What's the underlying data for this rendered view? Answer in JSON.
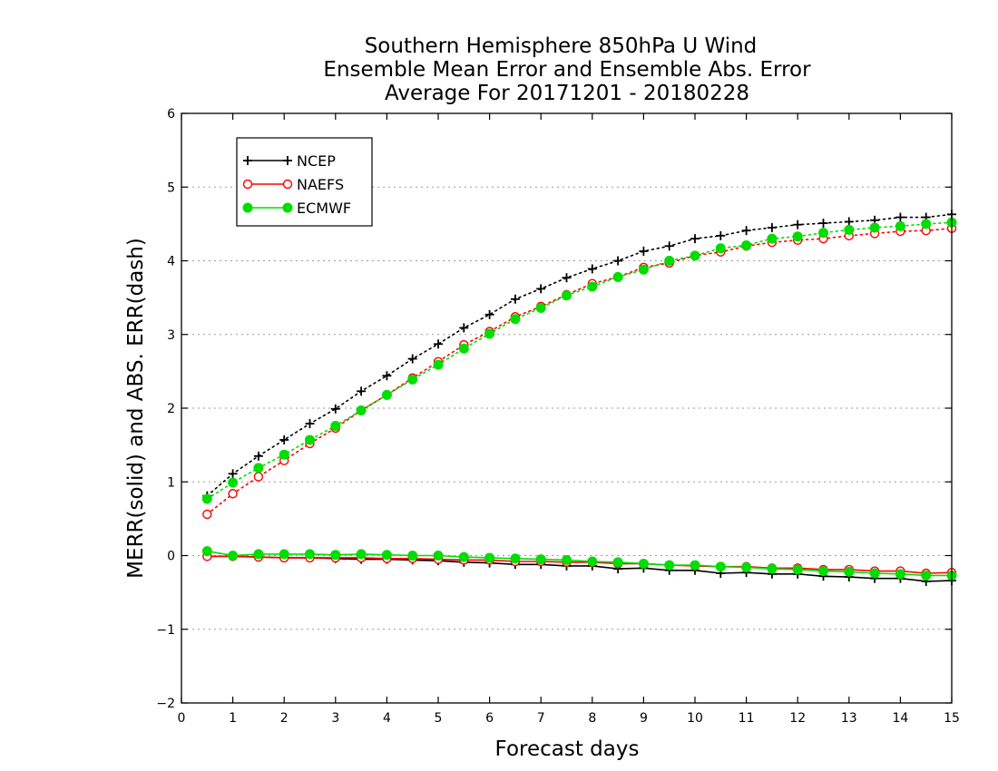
{
  "chart_data": {
    "type": "line",
    "title_lines": [
      "Southern Hemisphere 850hPa U Wind",
      "Ensemble Mean Error and Ensemble Abs. Error",
      "Average For 20171201 - 20180228"
    ],
    "xlabel": "Forecast days",
    "ylabel": "MERR(solid) and ABS. ERR(dash)",
    "xlim": [
      0,
      15
    ],
    "ylim": [
      -2,
      6
    ],
    "xticks": [
      "0",
      "1",
      "2",
      "3",
      "4",
      "5",
      "6",
      "7",
      "8",
      "9",
      "10",
      "11",
      "12",
      "13",
      "14",
      "15"
    ],
    "yticks": [
      "−2",
      "−1",
      "0",
      "1",
      "2",
      "3",
      "4",
      "5",
      "6"
    ],
    "grid": "horizontal dotted",
    "legend_position": "top-left",
    "x": [
      0.5,
      1,
      1.5,
      2,
      2.5,
      3,
      3.5,
      4,
      4.5,
      5,
      5.5,
      6,
      6.5,
      7,
      7.5,
      8,
      8.5,
      9,
      9.5,
      10,
      10.5,
      11,
      11.5,
      12,
      12.5,
      13,
      13.5,
      14,
      14.5,
      15
    ],
    "series": [
      {
        "name": "NCEP",
        "color": "#000000",
        "marker": "plus",
        "abs_err": [
          0.81,
          1.11,
          1.35,
          1.57,
          1.79,
          1.99,
          2.23,
          2.44,
          2.67,
          2.87,
          3.09,
          3.27,
          3.48,
          3.62,
          3.77,
          3.89,
          4.0,
          4.13,
          4.2,
          4.3,
          4.34,
          4.41,
          4.45,
          4.49,
          4.51,
          4.53,
          4.55,
          4.59,
          4.59,
          4.63
        ],
        "mean_err": [
          -0.01,
          -0.01,
          -0.02,
          -0.03,
          -0.03,
          -0.04,
          -0.05,
          -0.05,
          -0.06,
          -0.07,
          -0.09,
          -0.1,
          -0.12,
          -0.12,
          -0.14,
          -0.14,
          -0.18,
          -0.17,
          -0.2,
          -0.2,
          -0.24,
          -0.23,
          -0.25,
          -0.25,
          -0.28,
          -0.29,
          -0.31,
          -0.31,
          -0.35,
          -0.34
        ]
      },
      {
        "name": "NAEFS",
        "color": "#ff0000",
        "marker": "open-circle",
        "abs_err": [
          0.56,
          0.84,
          1.07,
          1.29,
          1.52,
          1.73,
          1.97,
          2.18,
          2.41,
          2.63,
          2.86,
          3.04,
          3.24,
          3.38,
          3.54,
          3.69,
          3.78,
          3.91,
          3.97,
          4.07,
          4.12,
          4.2,
          4.25,
          4.28,
          4.3,
          4.34,
          4.37,
          4.4,
          4.41,
          4.44
        ],
        "mean_err": [
          -0.01,
          -0.01,
          -0.02,
          -0.03,
          -0.03,
          -0.03,
          -0.03,
          -0.04,
          -0.04,
          -0.05,
          -0.06,
          -0.06,
          -0.08,
          -0.08,
          -0.09,
          -0.09,
          -0.11,
          -0.11,
          -0.13,
          -0.14,
          -0.15,
          -0.15,
          -0.17,
          -0.17,
          -0.19,
          -0.19,
          -0.21,
          -0.21,
          -0.24,
          -0.23
        ]
      },
      {
        "name": "ECMWF",
        "color": "#00dd00",
        "marker": "filled-circle",
        "abs_err": [
          0.77,
          0.99,
          1.19,
          1.37,
          1.57,
          1.76,
          1.97,
          2.18,
          2.39,
          2.59,
          2.81,
          3.01,
          3.21,
          3.36,
          3.53,
          3.65,
          3.78,
          3.88,
          4.0,
          4.07,
          4.17,
          4.21,
          4.3,
          4.33,
          4.38,
          4.42,
          4.45,
          4.47,
          4.5,
          4.52
        ],
        "mean_err": [
          0.06,
          0.0,
          0.02,
          0.02,
          0.02,
          0.01,
          0.02,
          0.01,
          0.0,
          0.0,
          -0.02,
          -0.03,
          -0.04,
          -0.05,
          -0.06,
          -0.08,
          -0.09,
          -0.11,
          -0.13,
          -0.13,
          -0.15,
          -0.16,
          -0.18,
          -0.19,
          -0.21,
          -0.22,
          -0.24,
          -0.25,
          -0.27,
          -0.27
        ]
      }
    ]
  }
}
